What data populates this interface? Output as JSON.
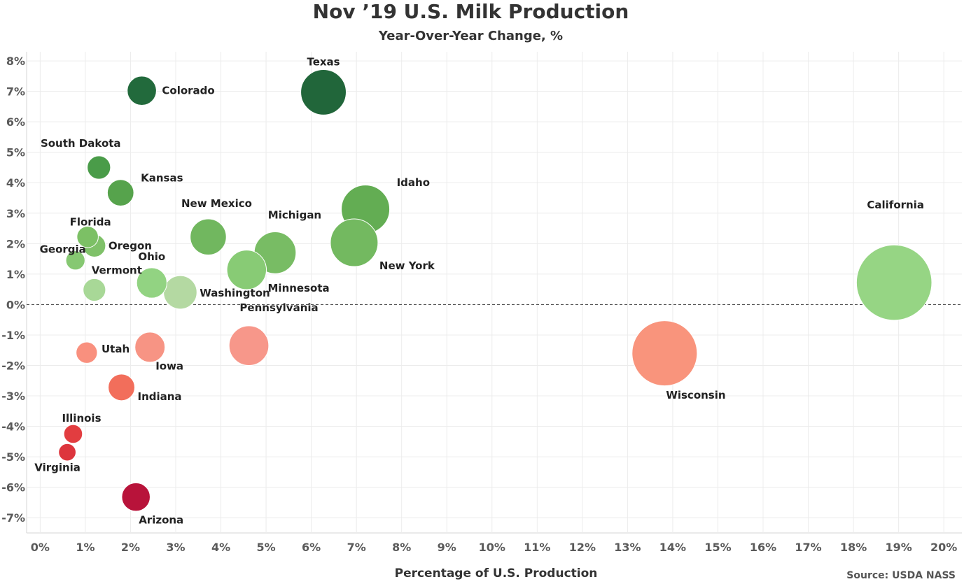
{
  "title": "Nov ’19 U.S. Milk Production",
  "subtitle": "Year-Over-Year Change, %",
  "source": "Source: USDA NASS",
  "chart_data": {
    "type": "scatter",
    "title": "Nov ’19 U.S. Milk Production",
    "subtitle": "Year-Over-Year Change, %",
    "xlabel": "Percentage of U.S. Production",
    "ylabel": "",
    "xlim": [
      -0.3,
      20.4
    ],
    "ylim": [
      -7.5,
      8.3
    ],
    "x_ticks": [
      0,
      1,
      2,
      3,
      4,
      5,
      6,
      7,
      8,
      9,
      10,
      11,
      12,
      13,
      14,
      15,
      16,
      17,
      18,
      19,
      20
    ],
    "y_ticks": [
      -7,
      -6,
      -5,
      -4,
      -3,
      -2,
      -1,
      0,
      1,
      2,
      3,
      4,
      5,
      6,
      7,
      8
    ],
    "tick_suffix": "%",
    "grid": true,
    "zero_line": "dashed",
    "bubble_size": "Percentage of U.S. Production",
    "color_scale": {
      "negative_max": "#b70a33",
      "negative_min": "#f9a08d",
      "positive_min": "#b3dba0",
      "positive_max": "#1e6536"
    },
    "points": [
      {
        "label": "Texas",
        "x": 6.27,
        "y": 6.97,
        "color": "#21663a"
      },
      {
        "label": "Colorado",
        "x": 2.25,
        "y": 7.02,
        "color": "#226a3c"
      },
      {
        "label": "South Dakota",
        "x": 1.3,
        "y": 4.5,
        "color": "#4a9c49"
      },
      {
        "label": "Kansas",
        "x": 1.78,
        "y": 3.67,
        "color": "#56a34c"
      },
      {
        "label": "Idaho",
        "x": 7.2,
        "y": 3.13,
        "color": "#63ad53"
      },
      {
        "label": "New Mexico",
        "x": 3.72,
        "y": 2.22,
        "color": "#71b75f"
      },
      {
        "label": "Michigan",
        "x": 5.2,
        "y": 1.7,
        "color": "#78bc64"
      },
      {
        "label": "New York",
        "x": 6.95,
        "y": 2.03,
        "color": "#73b960"
      },
      {
        "label": "California",
        "x": 18.9,
        "y": 0.72,
        "color": "#96d584"
      },
      {
        "label": "Florida",
        "x": 1.05,
        "y": 2.22,
        "color": "#7cc065"
      },
      {
        "label": "Oregon",
        "x": 1.2,
        "y": 1.93,
        "color": "#7fc169"
      },
      {
        "label": "Georgia",
        "x": 0.78,
        "y": 1.45,
        "color": "#86c872"
      },
      {
        "label": "Minnesota",
        "x": 4.57,
        "y": 1.14,
        "color": "#88cb75"
      },
      {
        "label": "Vermont",
        "x": 1.2,
        "y": 0.48,
        "color": "#a8d897"
      },
      {
        "label": "Ohio",
        "x": 2.47,
        "y": 0.71,
        "color": "#92d382"
      },
      {
        "label": "Washington",
        "x": 3.1,
        "y": 0.4,
        "color": "#b4d9a2"
      },
      {
        "label": "Pennsylvania",
        "x": 4.62,
        "y": -1.35,
        "color": "#f7978a"
      },
      {
        "label": "Wisconsin",
        "x": 13.82,
        "y": -1.6,
        "color": "#f9947c"
      },
      {
        "label": "Utah",
        "x": 1.03,
        "y": -1.58,
        "color": "#f9907e"
      },
      {
        "label": "Iowa",
        "x": 2.43,
        "y": -1.4,
        "color": "#f79484"
      },
      {
        "label": "Indiana",
        "x": 1.8,
        "y": -2.72,
        "color": "#f26e5b"
      },
      {
        "label": "Illinois",
        "x": 0.73,
        "y": -4.25,
        "color": "#e23d40"
      },
      {
        "label": "Virginia",
        "x": 0.6,
        "y": -4.85,
        "color": "#dd353d"
      },
      {
        "label": "Arizona",
        "x": 2.12,
        "y": -6.32,
        "color": "#b8133a"
      }
    ]
  }
}
